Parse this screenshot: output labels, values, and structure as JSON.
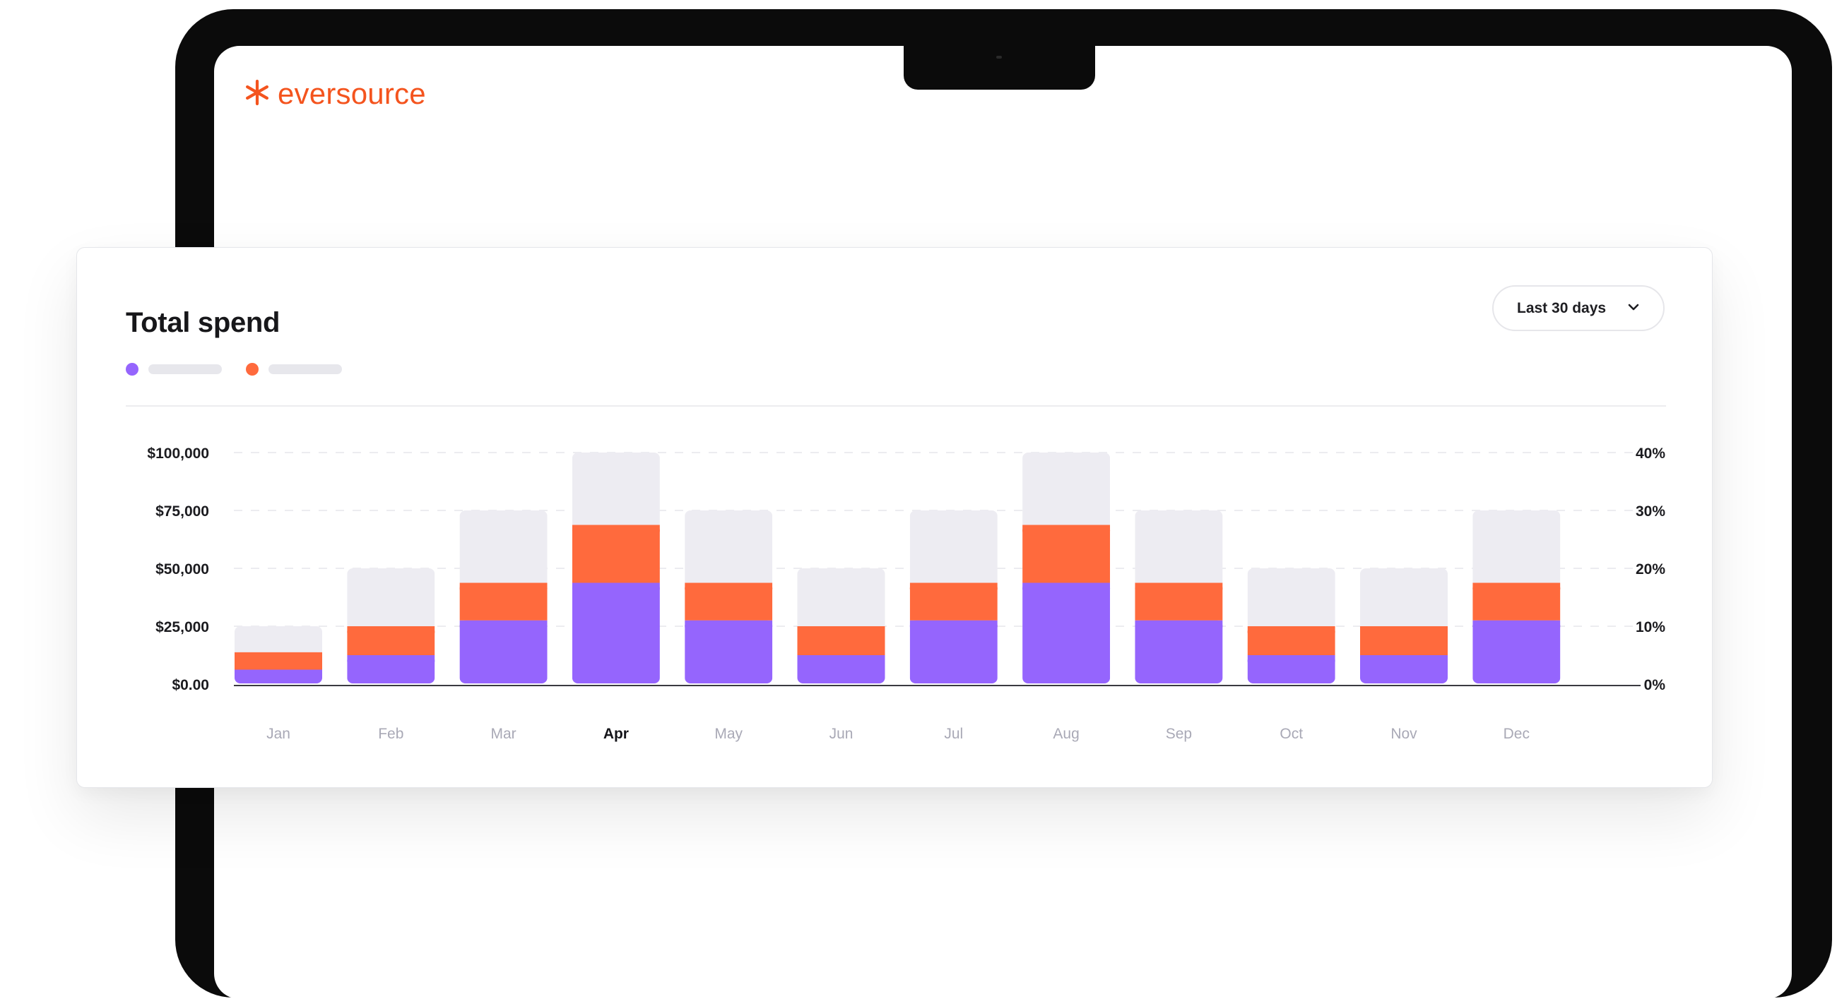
{
  "app": {
    "logo_text": "eversource",
    "logo_icon": "asterisk-logo-icon"
  },
  "card": {
    "title": "Total spend",
    "dropdown": {
      "selected": "Last 30 days",
      "icon": "chevron-down-icon"
    },
    "legend": [
      {
        "color": "#9565FD",
        "label": ""
      },
      {
        "color": "#FF6A3D",
        "label": ""
      }
    ]
  },
  "colors": {
    "accent": "#F4541E",
    "purple": "#9565FD",
    "orange": "#FF6A3D",
    "background_bar": "#EDECF2"
  },
  "chart_data": {
    "type": "bar",
    "stacked": true,
    "categories": [
      "Jan",
      "Feb",
      "Mar",
      "Apr",
      "May",
      "Jun",
      "Jul",
      "Aug",
      "Sep",
      "Oct",
      "Nov",
      "Dec"
    ],
    "active_category": "Apr",
    "series": [
      {
        "values": [
          6250,
          12500,
          27500,
          43750,
          27500,
          12500,
          27500,
          43750,
          27500,
          12500,
          12500,
          27500
        ]
      },
      {
        "values": [
          7500,
          12500,
          16250,
          25000,
          16250,
          12500,
          16250,
          25000,
          16250,
          12500,
          12500,
          16250
        ]
      },
      {
        "values": [
          11250,
          25000,
          31250,
          31250,
          31250,
          25000,
          31250,
          31250,
          31250,
          25000,
          25000,
          31250
        ]
      }
    ],
    "y_left": {
      "ticks": [
        "$0.00",
        "$25,000",
        "$50,000",
        "$75,000",
        "$100,000"
      ],
      "lim": [
        0,
        100000
      ]
    },
    "y_right": {
      "ticks": [
        "0%",
        "10%",
        "20%",
        "30%",
        "40%"
      ],
      "lim": [
        0,
        40
      ]
    },
    "grid": true
  }
}
